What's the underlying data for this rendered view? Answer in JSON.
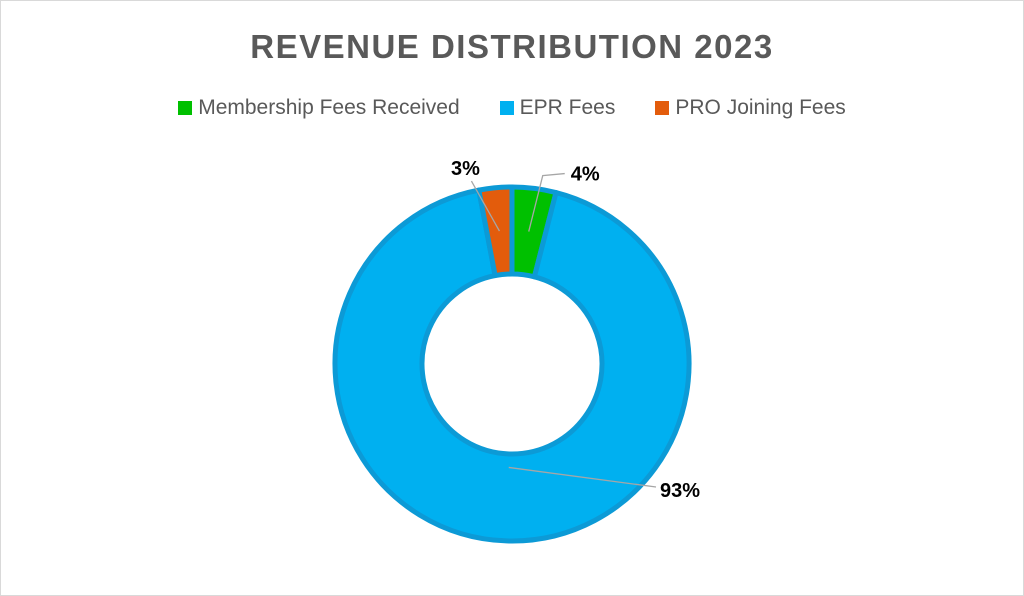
{
  "chart_data": {
    "type": "pie",
    "subtype": "doughnut",
    "title": "REVENUE DISTRIBUTION 2023",
    "legend_position": "top",
    "categories": [
      "Membership Fees Received",
      "EPR Fees",
      "PRO Joining Fees"
    ],
    "values": [
      4,
      93,
      3
    ],
    "data_labels": [
      "4%",
      "93%",
      "3%"
    ],
    "colors": [
      "#00c000",
      "#00b0f0",
      "#e35c0c"
    ],
    "ring_border_color": "#0c9ad6"
  }
}
